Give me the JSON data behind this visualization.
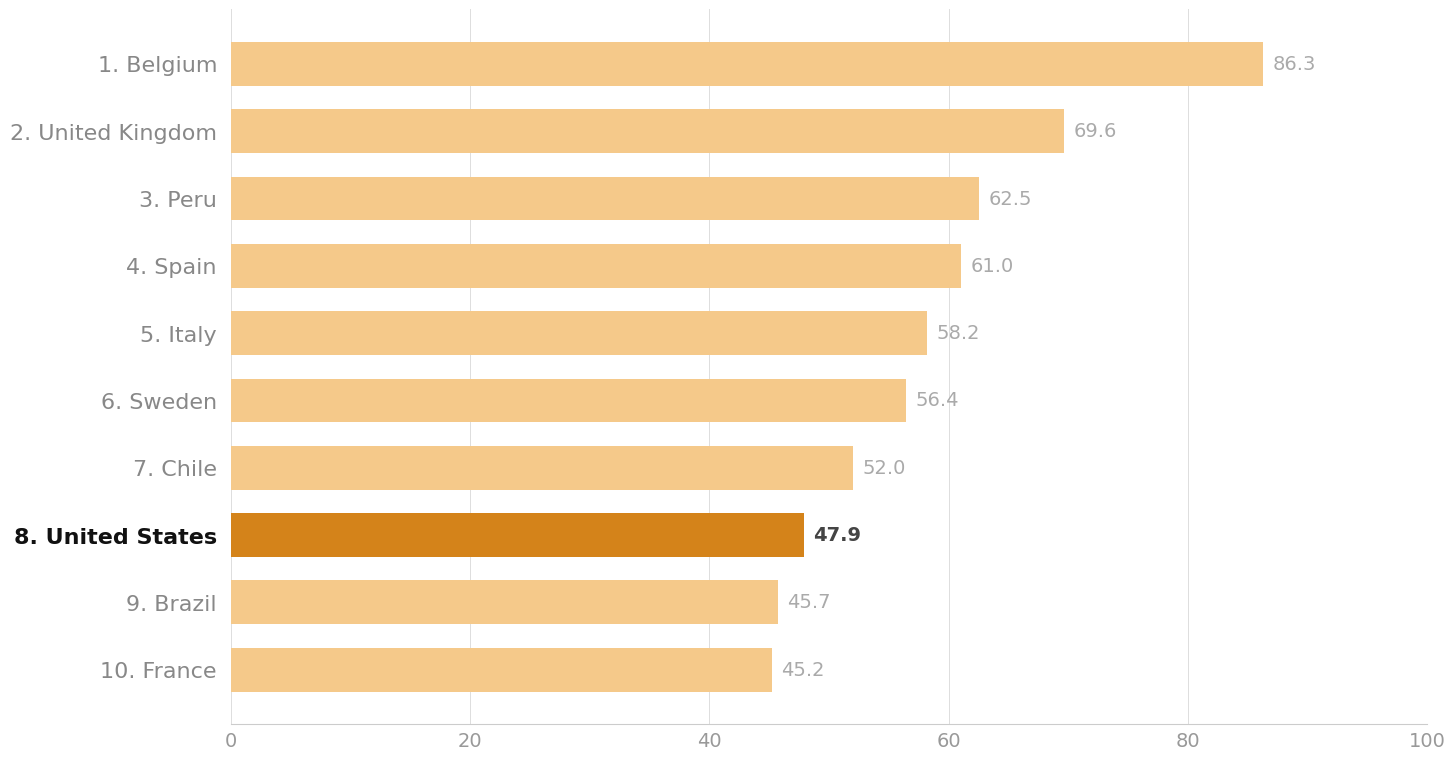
{
  "categories": [
    "10. France",
    "9. Brazil",
    "8. United States",
    "7. Chile",
    "6. Sweden",
    "5. Italy",
    "4. Spain",
    "3. Peru",
    "2. United Kingdom",
    "1. Belgium"
  ],
  "values": [
    45.2,
    45.7,
    47.9,
    52.0,
    56.4,
    58.2,
    61.0,
    62.5,
    69.6,
    86.3
  ],
  "bar_colors": [
    "#f5c98a",
    "#f5c98a",
    "#d4831a",
    "#f5c98a",
    "#f5c98a",
    "#f5c98a",
    "#f5c98a",
    "#f5c98a",
    "#f5c98a",
    "#f5c98a"
  ],
  "value_label_colors": [
    "#aaaaaa",
    "#aaaaaa",
    "#444444",
    "#aaaaaa",
    "#aaaaaa",
    "#aaaaaa",
    "#aaaaaa",
    "#aaaaaa",
    "#aaaaaa",
    "#aaaaaa"
  ],
  "bold_flags": [
    false,
    false,
    true,
    false,
    false,
    false,
    false,
    false,
    false,
    false
  ],
  "ytick_colors": [
    "#888888",
    "#888888",
    "#111111",
    "#888888",
    "#888888",
    "#888888",
    "#888888",
    "#888888",
    "#888888",
    "#888888"
  ],
  "xlim": [
    0,
    100
  ],
  "xticks": [
    0,
    20,
    40,
    60,
    80,
    100
  ],
  "background_color": "#ffffff",
  "tick_label_fontsize": 14,
  "value_label_fontsize": 14,
  "ytick_fontsize": 16,
  "bar_height": 0.65
}
